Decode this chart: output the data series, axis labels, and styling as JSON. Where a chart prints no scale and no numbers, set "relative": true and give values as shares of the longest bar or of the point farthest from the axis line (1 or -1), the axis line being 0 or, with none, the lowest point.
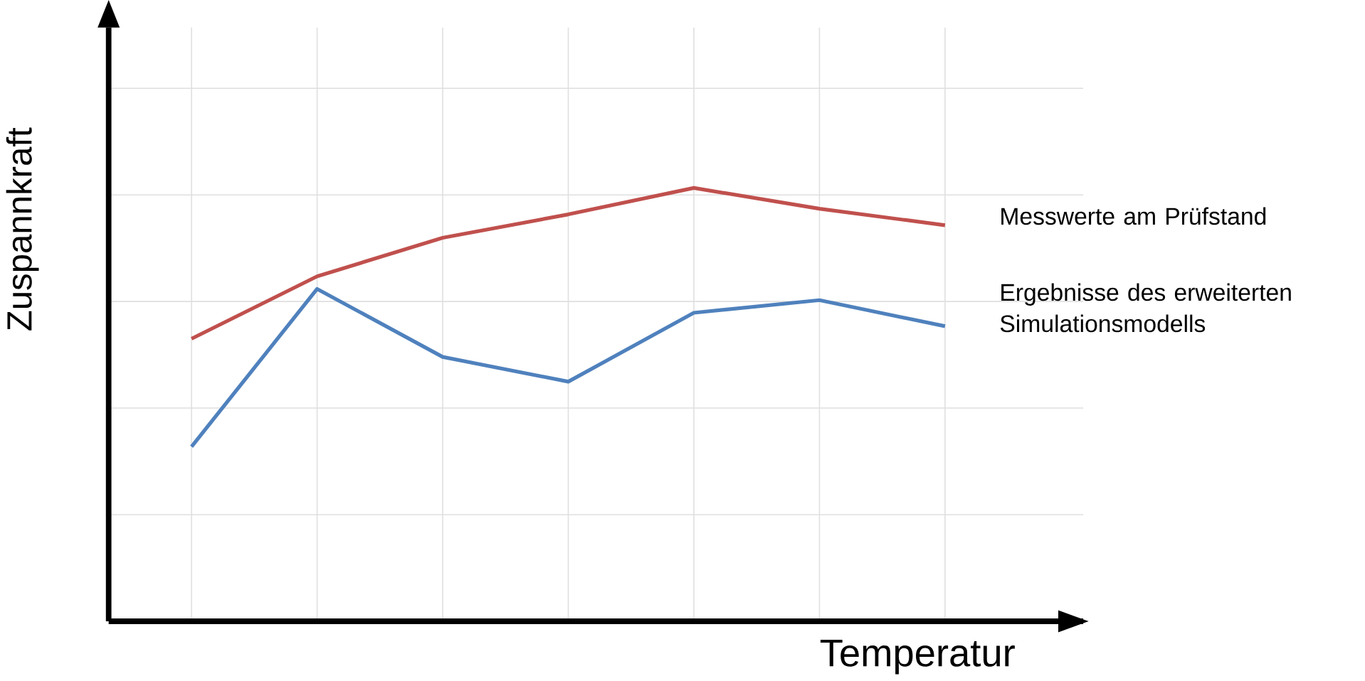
{
  "chart_data": {
    "type": "line",
    "relative": true,
    "xlabel": "Temperatur",
    "ylabel": "Zuspannkraft",
    "categories": [
      null,
      null,
      null,
      null,
      null,
      null,
      null
    ],
    "grid": true,
    "legend": false,
    "marker": "none",
    "line_style": "solid",
    "series": [
      {
        "name": "Messwerte am Prüfstand",
        "color": "#c0504d",
        "values": [
          0.652,
          0.796,
          0.885,
          0.939,
          1,
          0.952,
          0.914
        ]
      },
      {
        "name": "Ergebnisse des erweiterten Simulationsmodells",
        "color": "#4f81bd",
        "values": [
          0.403,
          0.767,
          0.61,
          0.553,
          0.712,
          0.741,
          0.681
        ]
      }
    ]
  }
}
